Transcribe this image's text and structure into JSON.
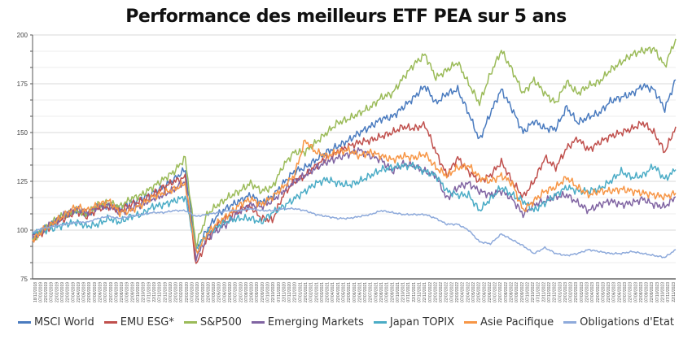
{
  "chart_data": {
    "type": "line",
    "title": "Performance des meilleurs ETF PEA sur 5 ans",
    "xlabel": "",
    "ylabel": "",
    "ylim": [
      75,
      200
    ],
    "y_ticks": [
      "75",
      "100",
      "125",
      "150",
      "175",
      "200"
    ],
    "grid": true,
    "legend_position": "bottom",
    "x_months": [
      "12/2018",
      "01/2019",
      "02/2019",
      "03/2019",
      "04/2019",
      "05/2019",
      "06/2019",
      "07/2019",
      "08/2019",
      "09/2019",
      "10/2019",
      "11/2019",
      "12/2019",
      "01/2020",
      "02/2020",
      "03/2020",
      "04/2020",
      "05/2020",
      "06/2020",
      "07/2020",
      "08/2020",
      "09/2020",
      "10/2020",
      "11/2020",
      "12/2020",
      "01/2021",
      "02/2021",
      "03/2021",
      "04/2021",
      "05/2021",
      "06/2021",
      "07/2021",
      "08/2021",
      "09/2021",
      "10/2021",
      "11/2021",
      "12/2021",
      "01/2022",
      "02/2022",
      "03/2022",
      "04/2022",
      "05/2022",
      "06/2022",
      "07/2022",
      "08/2022",
      "09/2022",
      "10/2022",
      "11/2022",
      "12/2022",
      "01/2023",
      "02/2023",
      "03/2023",
      "04/2023",
      "05/2023",
      "06/2023",
      "07/2023",
      "08/2023",
      "09/2023",
      "10/2023",
      "11/2023"
    ],
    "x_tick_labels": [
      "18/12/2018",
      "07/01/2019",
      "22/01/2019",
      "07/02/2019",
      "22/02/2019",
      "07/03/2019",
      "22/03/2019",
      "07/04/2019",
      "22/04/2019",
      "07/05/2019",
      "22/05/2019",
      "07/06/2019",
      "22/06/2019",
      "07/07/2019",
      "22/07/2019",
      "07/08/2019",
      "22/08/2019",
      "07/09/2019",
      "22/09/2019",
      "07/10/2019",
      "22/10/2019",
      "07/11/2019",
      "22/11/2019",
      "07/12/2019",
      "22/12/2019",
      "07/01/2020",
      "22/01/2020",
      "07/02/2020",
      "22/02/2020",
      "07/03/2020",
      "22/03/2020",
      "07/04/2020",
      "22/04/2020",
      "07/05/2020",
      "22/05/2020",
      "07/06/2020",
      "22/06/2020",
      "07/07/2020",
      "22/07/2020",
      "07/08/2020",
      "22/08/2020",
      "07/09/2020",
      "22/09/2020",
      "07/10/2020",
      "22/10/2020",
      "07/11/2020",
      "22/11/2020",
      "07/12/2020",
      "22/12/2020",
      "07/01/2021",
      "22/01/2021",
      "07/02/2021",
      "22/02/2021",
      "07/03/2021",
      "22/03/2021",
      "07/04/2021",
      "22/04/2021",
      "07/05/2021",
      "22/05/2021",
      "07/06/2021",
      "22/06/2021",
      "07/07/2021",
      "22/07/2021",
      "07/08/2021",
      "22/08/2021",
      "07/09/2021",
      "22/09/2021",
      "07/10/2021",
      "22/10/2021",
      "07/11/2021",
      "22/11/2021",
      "07/12/2021",
      "22/12/2021",
      "07/01/2022",
      "22/01/2022",
      "07/02/2022",
      "22/02/2022",
      "07/03/2022",
      "22/03/2022",
      "07/04/2022",
      "22/04/2022",
      "07/05/2022",
      "22/05/2022",
      "07/06/2022",
      "22/06/2022",
      "07/07/2022",
      "22/07/2022",
      "07/08/2022",
      "22/08/2022",
      "07/09/2022",
      "22/09/2022",
      "07/10/2022",
      "22/10/2022",
      "07/11/2022",
      "22/11/2022",
      "07/12/2022",
      "22/12/2022",
      "07/01/2023",
      "22/01/2023",
      "07/02/2023",
      "22/02/2023",
      "07/03/2023",
      "22/03/2023",
      "07/04/2023",
      "22/04/2023",
      "07/05/2023",
      "22/05/2023",
      "07/06/2023",
      "22/06/2023",
      "07/07/2023",
      "22/07/2023",
      "07/08/2023",
      "22/08/2023",
      "07/09/2023",
      "22/09/2023",
      "07/10/2023",
      "22/10/2023",
      "07/11/2023",
      "22/11/2023"
    ],
    "series": [
      {
        "name": "MSCI World",
        "color": "#4a7bbf",
        "values": [
          96,
          100,
          104,
          107,
          110,
          108,
          112,
          113,
          111,
          114,
          116,
          119,
          122,
          126,
          131,
          90,
          100,
          108,
          112,
          115,
          118,
          114,
          117,
          124,
          130,
          132,
          136,
          140,
          143,
          146,
          150,
          153,
          157,
          158,
          163,
          168,
          174,
          165,
          170,
          172,
          160,
          146,
          160,
          172,
          162,
          150,
          156,
          152,
          152,
          163,
          155,
          158,
          160,
          166,
          168,
          170,
          174,
          172,
          162,
          177
        ]
      },
      {
        "name": "EMU ESG*",
        "color": "#c0504d",
        "values": [
          95,
          99,
          103,
          106,
          110,
          107,
          111,
          112,
          110,
          113,
          115,
          118,
          122,
          125,
          127,
          82,
          95,
          103,
          107,
          110,
          112,
          106,
          105,
          118,
          125,
          128,
          133,
          137,
          140,
          143,
          145,
          146,
          148,
          150,
          153,
          152,
          154,
          140,
          128,
          137,
          130,
          125,
          128,
          135,
          125,
          117,
          125,
          137,
          132,
          142,
          147,
          141,
          145,
          148,
          150,
          152,
          155,
          150,
          140,
          153
        ]
      },
      {
        "name": "S&P500",
        "color": "#9bbb59",
        "values": [
          95,
          100,
          105,
          108,
          110,
          108,
          113,
          114,
          112,
          116,
          118,
          122,
          126,
          130,
          137,
          92,
          108,
          113,
          117,
          120,
          124,
          120,
          122,
          133,
          140,
          140,
          145,
          150,
          155,
          157,
          160,
          163,
          168,
          170,
          178,
          185,
          190,
          178,
          182,
          186,
          175,
          165,
          180,
          192,
          182,
          170,
          177,
          170,
          165,
          176,
          170,
          174,
          176,
          182,
          186,
          190,
          192,
          193,
          184,
          198
        ]
      },
      {
        "name": "Emerging Markets",
        "color": "#8064a2",
        "values": [
          96,
          100,
          104,
          108,
          111,
          109,
          112,
          113,
          109,
          111,
          113,
          116,
          118,
          121,
          125,
          86,
          96,
          100,
          104,
          110,
          113,
          112,
          115,
          120,
          125,
          128,
          132,
          135,
          137,
          139,
          141,
          138,
          136,
          130,
          134,
          133,
          130,
          128,
          116,
          122,
          124,
          120,
          118,
          120,
          116,
          108,
          113,
          115,
          117,
          118,
          114,
          110,
          113,
          115,
          113,
          114,
          116,
          113,
          112,
          117
        ]
      },
      {
        "name": "Japan TOPIX",
        "color": "#4bacc6",
        "values": [
          98,
          100,
          101,
          103,
          104,
          102,
          103,
          106,
          104,
          107,
          108,
          112,
          113,
          115,
          117,
          90,
          98,
          102,
          105,
          106,
          106,
          104,
          109,
          112,
          116,
          120,
          124,
          126,
          124,
          123,
          125,
          128,
          131,
          132,
          133,
          133,
          130,
          128,
          120,
          118,
          118,
          110,
          116,
          122,
          118,
          115,
          110,
          114,
          118,
          122,
          120,
          120,
          121,
          125,
          130,
          127,
          128,
          133,
          126,
          131
        ]
      },
      {
        "name": "Asie Pacifique",
        "color": "#f79646",
        "values": [
          95,
          100,
          104,
          108,
          112,
          110,
          113,
          115,
          109,
          110,
          113,
          117,
          119,
          121,
          124,
          88,
          98,
          104,
          108,
          113,
          116,
          113,
          117,
          122,
          128,
          146,
          140,
          138,
          140,
          141,
          138,
          140,
          138,
          136,
          138,
          137,
          139,
          132,
          128,
          132,
          133,
          127,
          125,
          128,
          124,
          110,
          115,
          120,
          122,
          127,
          122,
          118,
          120,
          120,
          121,
          120,
          119,
          118,
          117,
          119
        ]
      },
      {
        "name": "Obligations d'Etat",
        "color": "#8eaadb",
        "values": [
          99,
          101,
          102,
          103,
          104,
          104,
          106,
          107,
          106,
          107,
          108,
          109,
          109,
          110,
          110,
          107,
          108,
          109,
          110,
          110,
          111,
          110,
          110,
          111,
          111,
          110,
          108,
          107,
          106,
          106,
          107,
          108,
          110,
          109,
          108,
          108,
          108,
          106,
          103,
          103,
          100,
          94,
          93,
          98,
          95,
          92,
          88,
          91,
          88,
          87,
          88,
          90,
          89,
          88,
          88,
          89,
          88,
          87,
          86,
          90
        ]
      }
    ]
  }
}
